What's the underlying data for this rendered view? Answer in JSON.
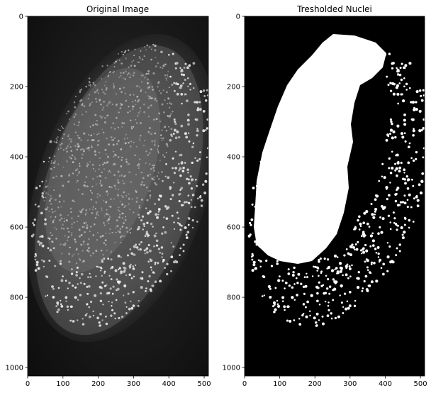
{
  "panels": [
    {
      "title": "Original Image",
      "image_type": "grayscale-microscopy",
      "xlim": [
        0,
        512
      ],
      "ylim": [
        1024,
        0
      ],
      "x_ticks": [
        0,
        100,
        200,
        300,
        400,
        500
      ],
      "y_ticks": [
        0,
        200,
        400,
        600,
        800,
        1000
      ],
      "colors": {
        "background": "#141414",
        "embryo_glow": "#4a4a4a",
        "nuclei": "#d8d8d8"
      }
    },
    {
      "title": "Tresholded Nuclei",
      "image_type": "binary-mask",
      "xlim": [
        0,
        512
      ],
      "ylim": [
        1024,
        0
      ],
      "x_ticks": [
        0,
        100,
        200,
        300,
        400,
        500
      ],
      "y_ticks": [
        0,
        200,
        400,
        600,
        800,
        1000
      ],
      "colors": {
        "background": "#000000",
        "mask": "#ffffff"
      }
    }
  ]
}
